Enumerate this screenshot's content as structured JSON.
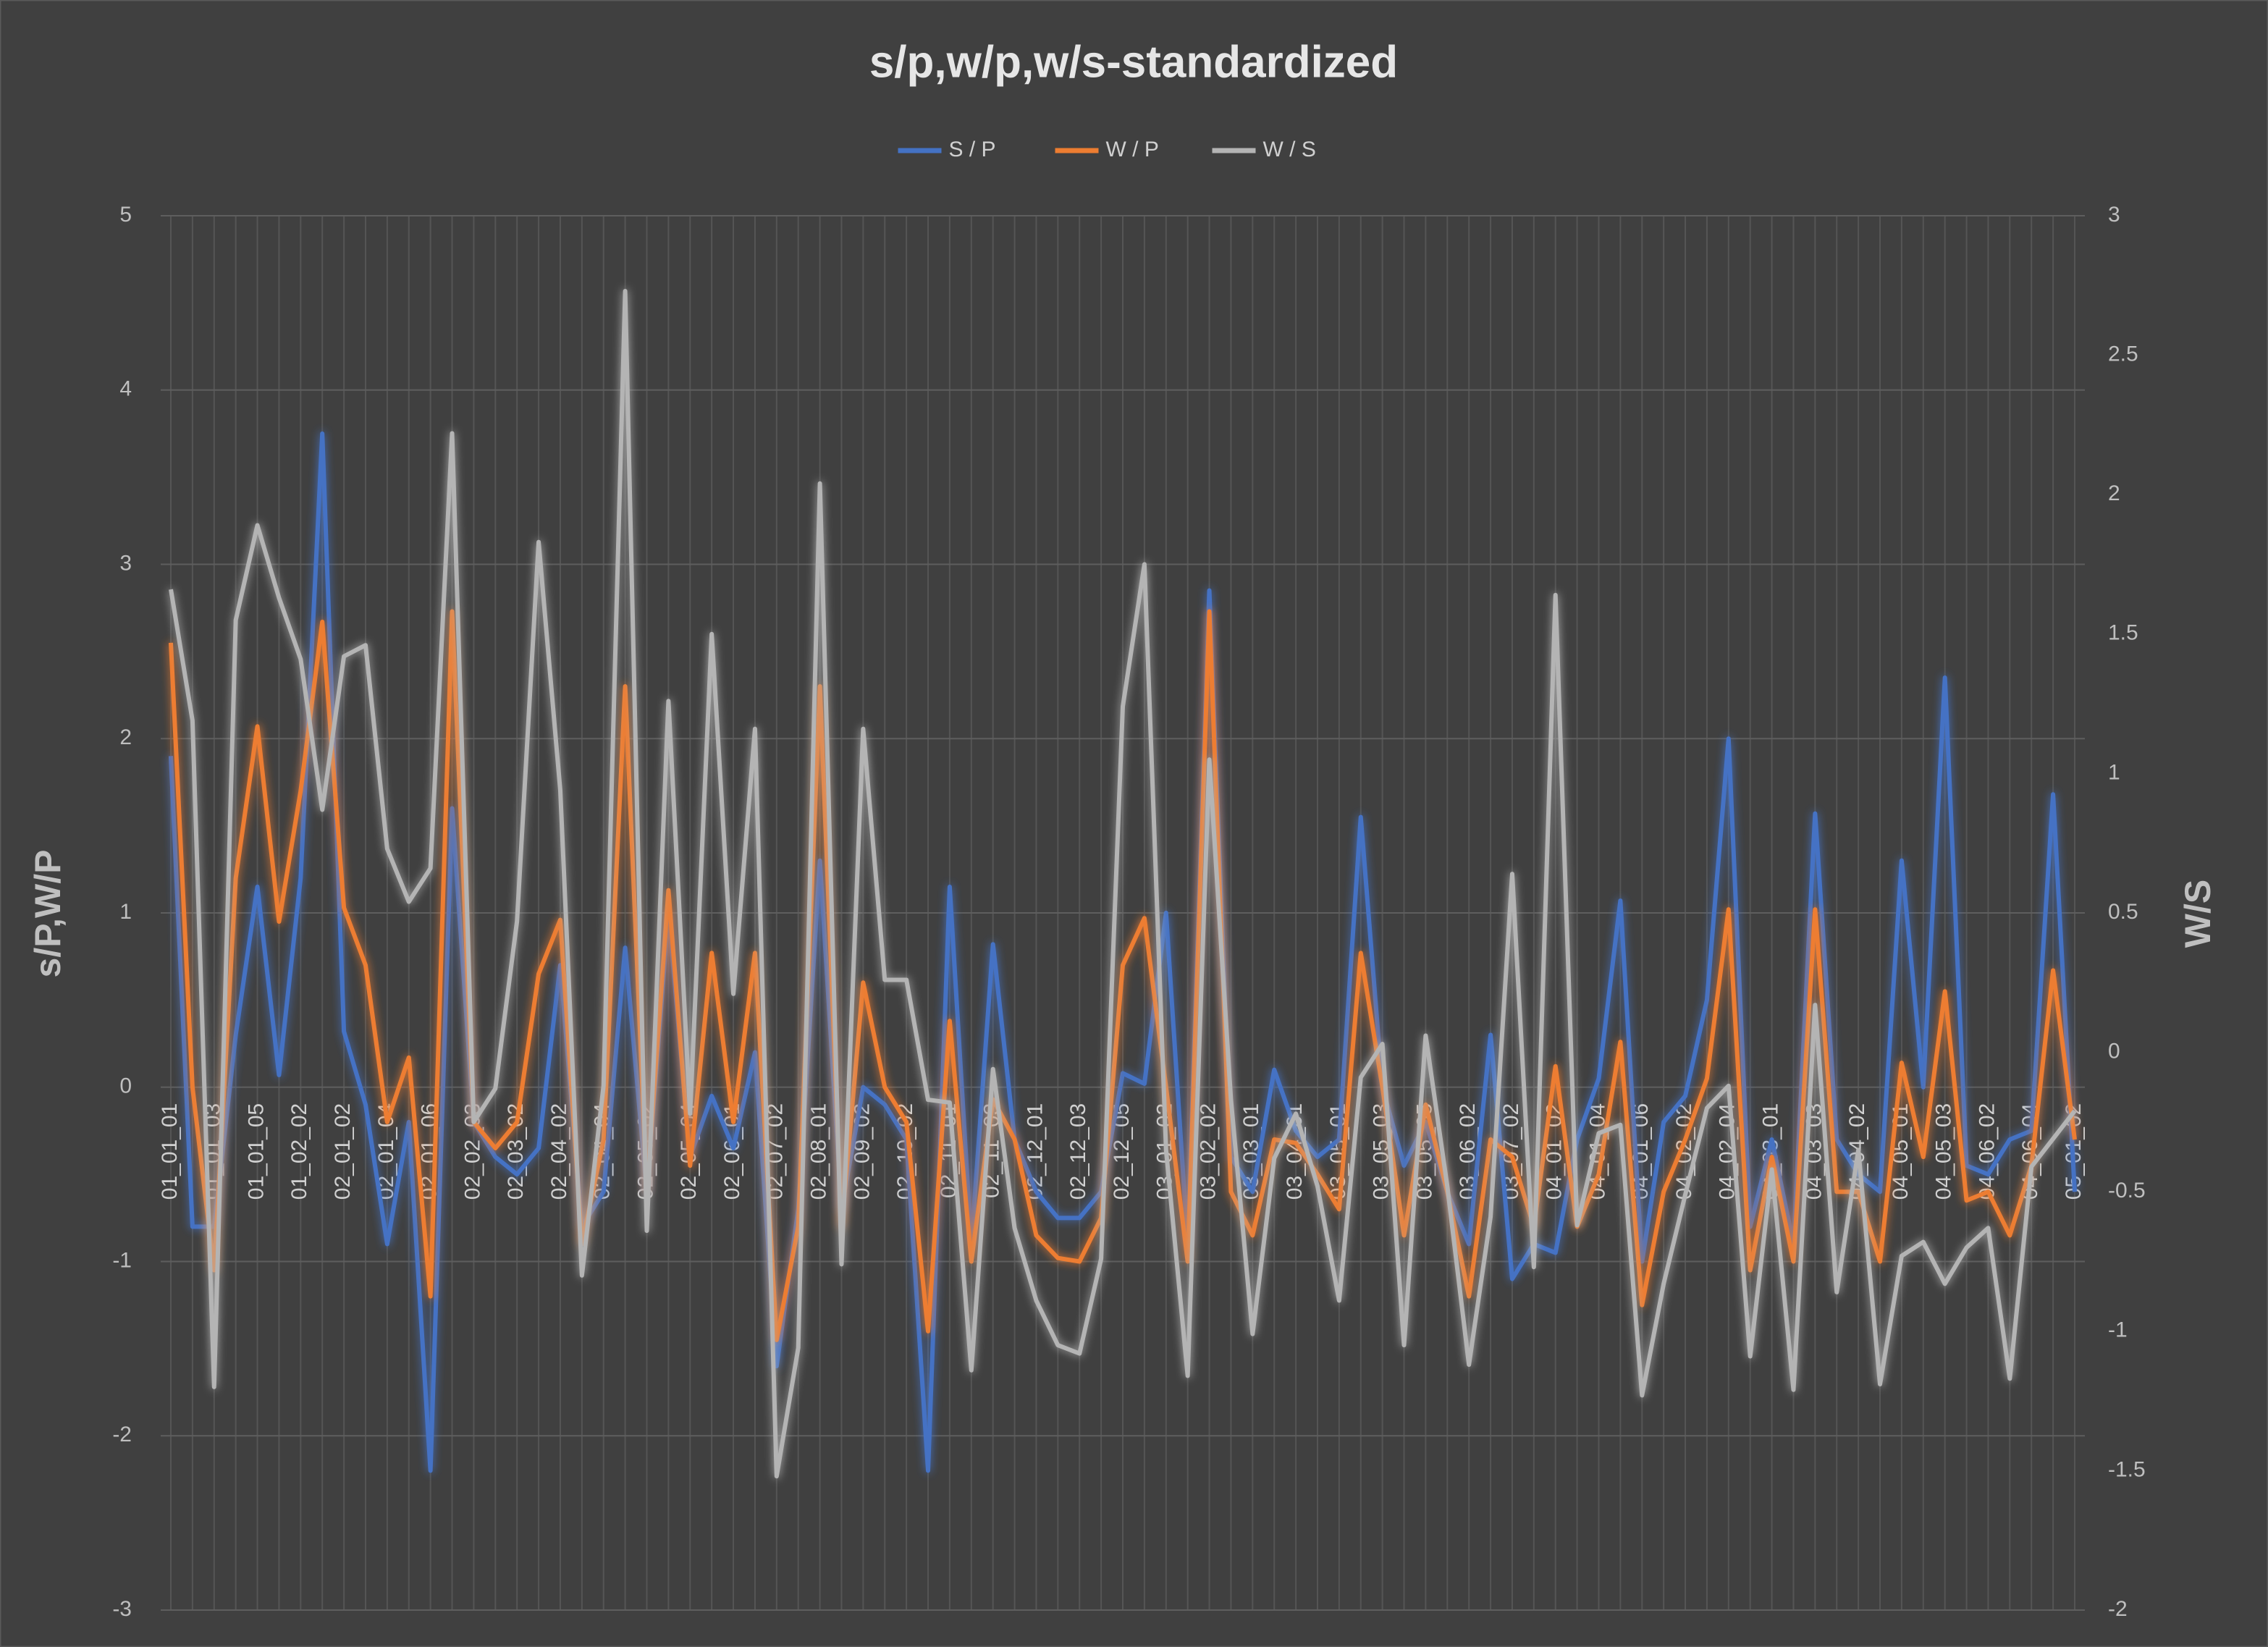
{
  "chart_data": {
    "type": "line",
    "title": "s/p,w/p,w/s-standardized",
    "ylabel": "s/P,W/P",
    "y2label": "W/S",
    "categories": [
      "01_01_01",
      null,
      "01_01_03",
      null,
      "01_01_05",
      null,
      "01_02_02",
      null,
      "02_01_02",
      null,
      "02_01_04",
      null,
      "02_01_06",
      null,
      "02_02_03",
      null,
      "02_03_02",
      null,
      "02_04_02",
      null,
      "02_04_04",
      null,
      "02_05_02",
      null,
      "02_05_04",
      null,
      "02_06_01",
      null,
      "02_07_02",
      null,
      "02_08_01",
      null,
      "02_09_02",
      null,
      "02_10_02",
      null,
      "02_11_01",
      null,
      "02_11_03",
      null,
      "02_12_01",
      null,
      "02_12_03",
      null,
      "02_12_05",
      null,
      "03_01_02",
      null,
      "03_02_02",
      null,
      "03_03_01",
      null,
      "03_04_01",
      null,
      "03_05_01",
      null,
      "03_05_03",
      null,
      "03_05_05",
      null,
      "03_06_02",
      null,
      "03_07_02",
      null,
      "04_01_02",
      null,
      "04_01_04",
      null,
      "04_01_06",
      null,
      "04_02_02",
      null,
      "04_02_04",
      null,
      "04_03_01",
      null,
      "04_03_03",
      null,
      "04_04_02",
      null,
      "04_05_01",
      null,
      "04_05_03",
      null,
      "04_06_02",
      null,
      "04_06_04",
      null,
      "05_01_02"
    ],
    "series": [
      {
        "name": "S / P",
        "color": "#4472c4",
        "values": [
          1.9,
          -0.8,
          -0.8,
          0.3,
          1.15,
          0.07,
          1.2,
          3.75,
          0.32,
          -0.1,
          -0.9,
          -0.2,
          -2.2,
          1.6,
          -0.2,
          -0.4,
          -0.5,
          -0.35,
          0.7,
          -0.8,
          -0.6,
          0.8,
          -0.6,
          1.0,
          -0.4,
          -0.05,
          -0.35,
          0.2,
          -1.6,
          -0.7,
          1.3,
          -0.7,
          0.0,
          -0.1,
          -0.3,
          -2.2,
          1.15,
          -0.9,
          0.82,
          -0.3,
          -0.6,
          -0.75,
          -0.75,
          -0.6,
          0.08,
          0.02,
          1.0,
          -0.9,
          2.85,
          -0.4,
          -0.6,
          0.1,
          -0.25,
          -0.4,
          -0.3,
          1.55,
          0.0,
          -0.45,
          -0.2,
          -0.6,
          -0.9,
          0.3,
          -1.1,
          -0.9,
          -0.95,
          -0.3,
          0.05,
          1.07,
          -1.0,
          -0.2,
          -0.05,
          0.5,
          2.0,
          -0.8,
          -0.3,
          -0.9,
          1.57,
          -0.3,
          -0.5,
          -0.6,
          1.3,
          0.0,
          2.35,
          -0.45,
          -0.5,
          -0.3,
          -0.25,
          1.68,
          -0.6
        ]
      },
      {
        "name": "W / P",
        "color": "#ed7d31",
        "values": [
          2.55,
          0.0,
          -1.05,
          1.2,
          2.07,
          0.95,
          1.7,
          2.67,
          1.03,
          0.7,
          -0.2,
          0.17,
          -1.2,
          2.73,
          -0.2,
          -0.35,
          -0.2,
          0.65,
          0.96,
          -0.9,
          -0.3,
          2.3,
          -0.6,
          1.13,
          -0.45,
          0.77,
          -0.2,
          0.77,
          -1.45,
          -0.8,
          2.3,
          -0.8,
          0.6,
          0.0,
          -0.2,
          -1.4,
          0.38,
          -1.0,
          -0.07,
          -0.3,
          -0.85,
          -0.98,
          -1.0,
          -0.75,
          0.7,
          0.97,
          0.0,
          -1.0,
          2.73,
          -0.6,
          -0.85,
          -0.3,
          -0.32,
          -0.5,
          -0.7,
          0.77,
          0.0,
          -0.85,
          -0.1,
          -0.6,
          -1.2,
          -0.3,
          -0.4,
          -0.8,
          0.12,
          -0.8,
          -0.5,
          0.26,
          -1.25,
          -0.6,
          -0.3,
          0.05,
          1.02,
          -1.05,
          -0.4,
          -1.0,
          1.02,
          -0.6,
          -0.6,
          -1.0,
          0.14,
          -0.4,
          0.55,
          -0.65,
          -0.6,
          -0.85,
          -0.45,
          0.67,
          -0.3
        ]
      },
      {
        "name": "W / S",
        "color": "#b4b4b4",
        "axis": "y2",
        "values": [
          1.66,
          1.19,
          -1.2,
          1.55,
          1.89,
          1.63,
          1.41,
          0.87,
          1.42,
          1.46,
          0.73,
          0.54,
          0.66,
          2.22,
          -0.25,
          -0.13,
          0.47,
          1.83,
          0.94,
          -0.8,
          -0.12,
          2.73,
          -0.64,
          1.26,
          -0.22,
          1.5,
          0.21,
          1.16,
          -1.52,
          -1.06,
          2.04,
          -0.76,
          1.16,
          0.26,
          0.26,
          -0.17,
          -0.18,
          -1.14,
          -0.06,
          -0.63,
          -0.89,
          -1.05,
          -1.08,
          -0.74,
          1.24,
          1.75,
          -0.35,
          -1.16,
          1.05,
          -0.17,
          -1.01,
          -0.38,
          -0.22,
          -0.48,
          -0.89,
          -0.09,
          0.03,
          -1.05,
          0.06,
          -0.48,
          -1.12,
          -0.59,
          0.64,
          -0.77,
          1.64,
          -0.62,
          -0.29,
          -0.26,
          -1.23,
          -0.83,
          -0.51,
          -0.2,
          -0.12,
          -1.09,
          -0.42,
          -1.21,
          0.17,
          -0.86,
          -0.35,
          -1.19,
          -0.73,
          -0.68,
          -0.83,
          -0.7,
          -0.63,
          -1.17,
          -0.41,
          -0.31,
          -0.21
        ]
      }
    ],
    "ylim": [
      -3,
      5
    ],
    "yticks": [
      -3,
      -2,
      -1,
      0,
      1,
      2,
      3,
      4,
      5
    ],
    "y2lim": [
      -2,
      3
    ],
    "y2ticks": [
      -2,
      -1.5,
      -1,
      -0.5,
      0,
      0.5,
      1,
      1.5,
      2,
      2.5,
      3
    ],
    "grid": true,
    "legend": "top"
  }
}
